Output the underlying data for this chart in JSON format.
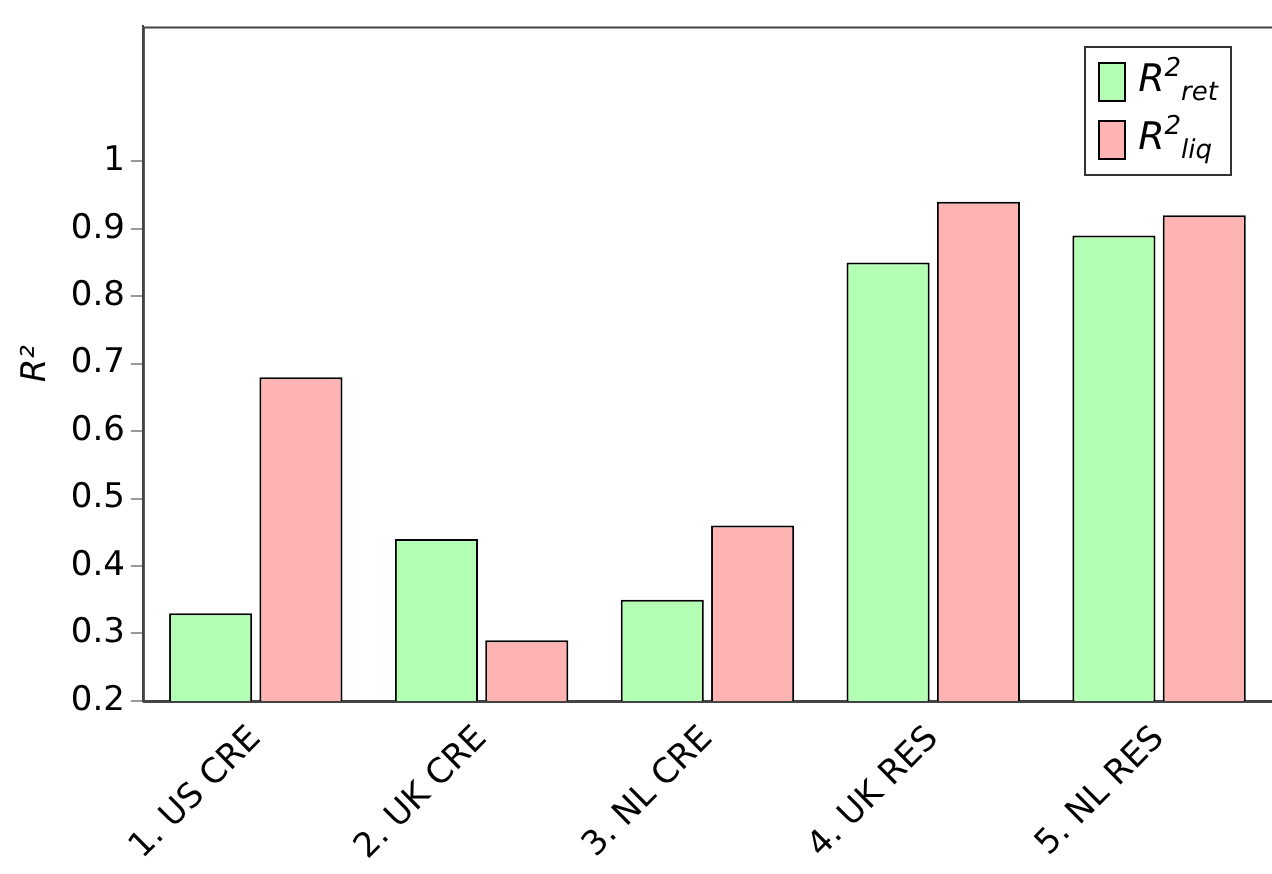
{
  "chart_data": {
    "type": "bar",
    "ylabel": "R²",
    "categories": [
      "1. US CRE",
      "2. UK CRE",
      "3. NL CRE",
      "4. UK RES",
      "5. NL RES"
    ],
    "series": [
      {
        "name": "R$^{2}$$_{ret}$",
        "color": "#b3ffb3",
        "values": [
          0.33,
          0.44,
          0.35,
          0.85,
          0.89
        ]
      },
      {
        "name": "R$^{2}$$_{liq}$",
        "color": "#ffb3b3",
        "values": [
          0.68,
          0.29,
          0.46,
          0.94,
          0.92
        ]
      }
    ],
    "ylim": [
      0.2,
      1.2
    ],
    "yticks": [
      0.2,
      0.3,
      0.4,
      0.5,
      0.6,
      0.7,
      0.8,
      0.9,
      1
    ],
    "grid": false,
    "legend": "top right"
  }
}
